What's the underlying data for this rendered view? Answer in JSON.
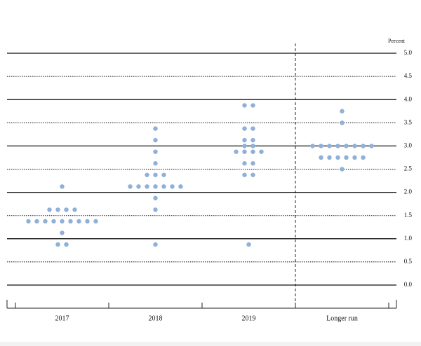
{
  "chart_data": {
    "type": "dot",
    "y_axis_label": "Percent",
    "categories": [
      "2017",
      "2018",
      "2019",
      "Longer run"
    ],
    "values": [
      [
        2.125,
        1.625,
        1.625,
        1.625,
        1.625,
        1.375,
        1.375,
        1.375,
        1.375,
        1.375,
        1.375,
        1.375,
        1.375,
        1.375,
        1.125,
        0.875,
        0.875
      ],
      [
        3.375,
        3.125,
        2.875,
        2.625,
        2.375,
        2.375,
        2.375,
        2.125,
        2.125,
        2.125,
        2.125,
        2.125,
        2.125,
        2.125,
        1.875,
        1.625,
        0.875
      ],
      [
        3.875,
        3.875,
        3.375,
        3.375,
        3.125,
        3.125,
        3.0,
        3.0,
        2.875,
        2.875,
        2.875,
        2.875,
        2.625,
        2.625,
        2.375,
        2.375,
        0.875
      ],
      [
        3.75,
        3.5,
        3.0,
        3.0,
        3.0,
        3.0,
        3.0,
        3.0,
        3.0,
        3.0,
        2.75,
        2.75,
        2.75,
        2.75,
        2.75,
        2.75,
        2.5
      ]
    ],
    "color": "#8fb0d8",
    "ylim": [
      0,
      5
    ],
    "yticks": [
      {
        "value": 0,
        "label": "0.0"
      },
      0.5,
      {
        "value": 1,
        "label": "1.0"
      },
      1.5,
      {
        "value": 2,
        "label": "2.0"
      },
      2.5,
      {
        "value": 3,
        "label": "3.0"
      },
      3.5,
      {
        "value": 4,
        "label": "4.0"
      },
      4.5,
      {
        "value": 5,
        "label": "5.0"
      }
    ],
    "grid": true
  }
}
